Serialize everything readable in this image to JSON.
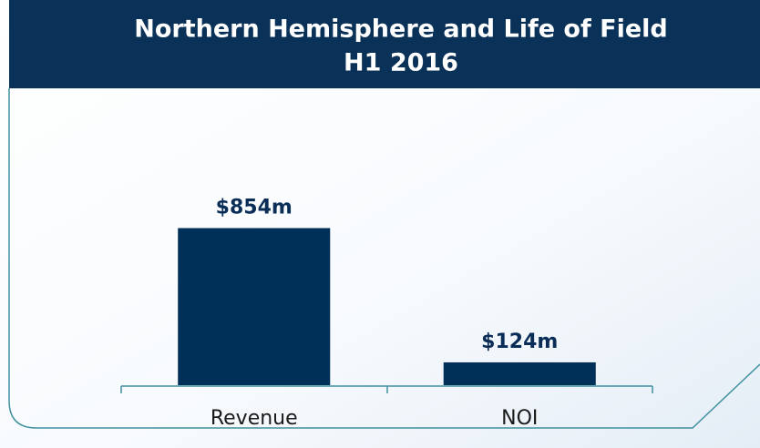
{
  "chart_data": {
    "type": "bar",
    "title": "Northern Hemisphere and Life of Field",
    "subtitle": "H1 2016",
    "categories": [
      "Revenue",
      "NOI"
    ],
    "values": [
      854,
      124
    ],
    "value_labels": [
      "$854m",
      "$124m"
    ],
    "color": "#003057",
    "ylim": [
      0,
      1000
    ]
  }
}
